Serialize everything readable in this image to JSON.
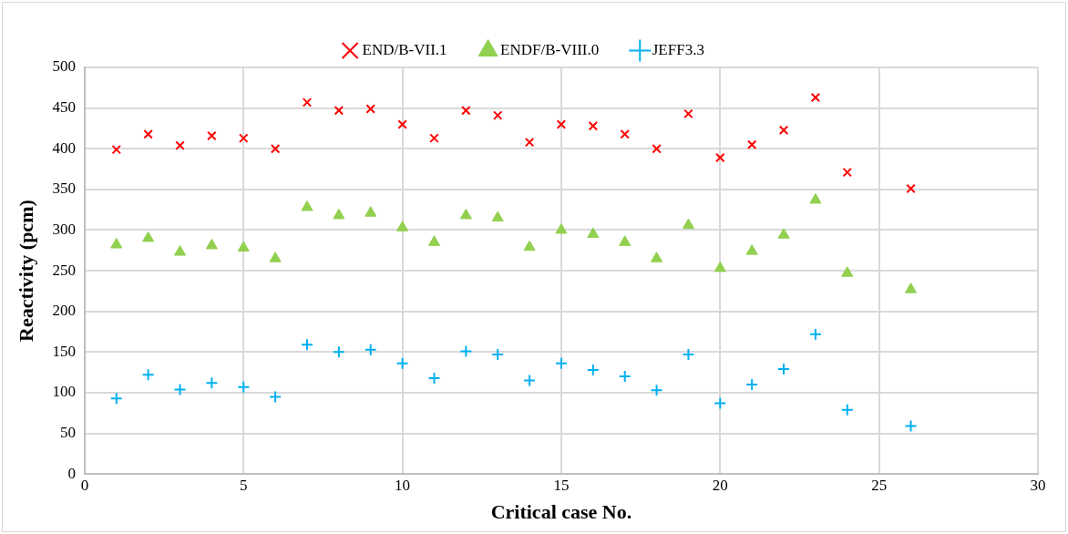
{
  "chart_data": {
    "type": "scatter",
    "xlabel": "Critical case No.",
    "ylabel": "Reactivity (pcm)",
    "x": [
      1,
      2,
      3,
      4,
      5,
      6,
      7,
      8,
      9,
      10,
      11,
      12,
      13,
      14,
      15,
      16,
      17,
      18,
      19,
      20,
      21,
      22,
      23,
      24,
      26
    ],
    "series": [
      {
        "name": "END/B-VII.1",
        "color": "#ff0000",
        "marker": "x",
        "values": [
          399,
          418,
          404,
          416,
          413,
          400,
          457,
          447,
          449,
          430,
          413,
          447,
          441,
          408,
          430,
          428,
          418,
          400,
          443,
          389,
          405,
          423,
          463,
          371,
          351
        ]
      },
      {
        "name": "ENDF/B-VIII.0",
        "color": "#92d050",
        "marker": "triangle",
        "values": [
          282,
          290,
          273,
          281,
          278,
          265,
          328,
          318,
          321,
          303,
          285,
          318,
          315,
          279,
          300,
          295,
          285,
          265,
          306,
          253,
          274,
          294,
          337,
          247,
          227
        ]
      },
      {
        "name": "JEFF3.3",
        "color": "#00b0f0",
        "marker": "cross",
        "values": [
          93,
          122,
          104,
          112,
          107,
          95,
          159,
          150,
          153,
          136,
          118,
          151,
          147,
          115,
          136,
          128,
          120,
          103,
          147,
          87,
          110,
          129,
          172,
          79,
          59
        ]
      }
    ],
    "xlim": [
      0,
      30
    ],
    "xticks": [
      0,
      5,
      10,
      15,
      20,
      25,
      30
    ],
    "ylim": [
      0,
      500
    ],
    "yticks": [
      0,
      50,
      100,
      150,
      200,
      250,
      300,
      350,
      400,
      450,
      500
    ],
    "grid": true,
    "legend": "top"
  }
}
